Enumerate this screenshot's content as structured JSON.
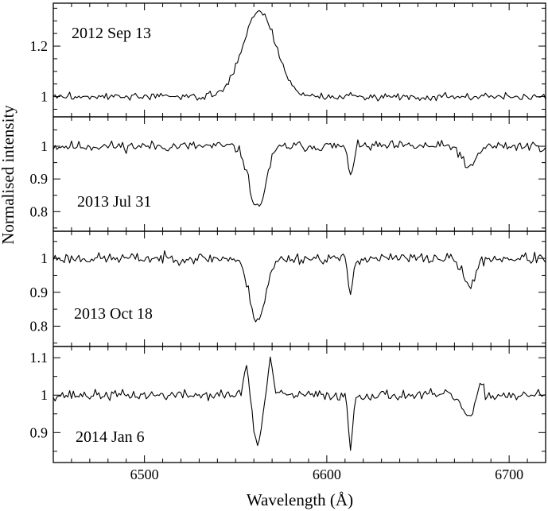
{
  "chart_data": {
    "type": "line",
    "xlabel": "Wavelength (Å)",
    "ylabel": "Normalised intensity",
    "xlim": [
      6450,
      6720
    ],
    "x_ticks": [
      6500,
      6600,
      6700
    ],
    "x_tick_labels": [
      "6500",
      "6600",
      "6700"
    ],
    "x_minor_step": 10,
    "panels": [
      {
        "label": "2012 Sep 13",
        "ylim": [
          0.92,
          1.37
        ],
        "y_ticks": [
          1.0,
          1.2
        ],
        "y_tick_labels": [
          "1",
          "1.2"
        ],
        "y_minor_step": 0.05,
        "features": [
          {
            "x": 6563,
            "depth": -0.34,
            "sigma": 9
          }
        ],
        "noise": 0.012,
        "seed": 3,
        "x": [
          6450,
          6500,
          6540,
          6550,
          6560,
          6563,
          6570,
          6580,
          6600,
          6700,
          6720
        ],
        "values": [
          1.0,
          1.04,
          1.01,
          1.07,
          1.31,
          1.34,
          1.25,
          1.07,
          1.0,
          1.0,
          1.0
        ]
      },
      {
        "label": "2013 Jul 31",
        "ylim": [
          0.74,
          1.09
        ],
        "y_ticks": [
          0.8,
          0.9,
          1.0
        ],
        "y_tick_labels": [
          "0.8",
          "0.9",
          "1"
        ],
        "y_minor_step": 0.05,
        "features": [
          {
            "x": 6562,
            "depth": 0.19,
            "sigma": 4.5
          },
          {
            "x": 6613,
            "depth": 0.08,
            "sigma": 1.6
          },
          {
            "x": 6678,
            "depth": 0.07,
            "sigma": 3.5
          }
        ],
        "noise": 0.014,
        "seed": 11,
        "x": [
          6450,
          6540,
          6555,
          6562,
          6570,
          6613,
          6678,
          6720
        ],
        "values": [
          1.0,
          1.0,
          0.9,
          0.8,
          0.93,
          0.92,
          0.93,
          1.0
        ]
      },
      {
        "label": "2013 Oct 18",
        "ylim": [
          0.74,
          1.08
        ],
        "y_ticks": [
          0.8,
          0.9,
          1.0
        ],
        "y_tick_labels": [
          "0.8",
          "0.9",
          "1"
        ],
        "y_minor_step": 0.05,
        "features": [
          {
            "x": 6562,
            "depth": 0.18,
            "sigma": 4.5
          },
          {
            "x": 6613,
            "depth": 0.1,
            "sigma": 1.4
          },
          {
            "x": 6678,
            "depth": 0.08,
            "sigma": 3.5
          }
        ],
        "noise": 0.014,
        "seed": 23,
        "x": [
          6450,
          6540,
          6555,
          6562,
          6570,
          6613,
          6678,
          6720
        ],
        "values": [
          1.0,
          1.0,
          0.9,
          0.81,
          0.94,
          0.9,
          0.92,
          1.0
        ]
      },
      {
        "label": "2014 Jan 6",
        "ylim": [
          0.82,
          1.13
        ],
        "y_ticks": [
          0.9,
          1.0,
          1.1
        ],
        "y_tick_labels": [
          "0.9",
          "1",
          "1.1"
        ],
        "y_minor_step": 0.05,
        "features": [
          {
            "x": 6562,
            "depth": 0.13,
            "sigma": 2.4
          },
          {
            "x": 6556,
            "depth": -0.08,
            "sigma": 1.5
          },
          {
            "x": 6569,
            "depth": -0.09,
            "sigma": 1.5
          },
          {
            "x": 6613,
            "depth": 0.14,
            "sigma": 1.2
          },
          {
            "x": 6678,
            "depth": 0.06,
            "sigma": 3.5
          },
          {
            "x": 6684,
            "depth": -0.04,
            "sigma": 1.5
          }
        ],
        "noise": 0.012,
        "seed": 37,
        "x": [
          6450,
          6556,
          6562,
          6569,
          6613,
          6678,
          6684,
          6720
        ],
        "values": [
          1.0,
          1.07,
          0.86,
          1.08,
          0.86,
          0.93,
          1.05,
          1.0
        ]
      }
    ]
  }
}
